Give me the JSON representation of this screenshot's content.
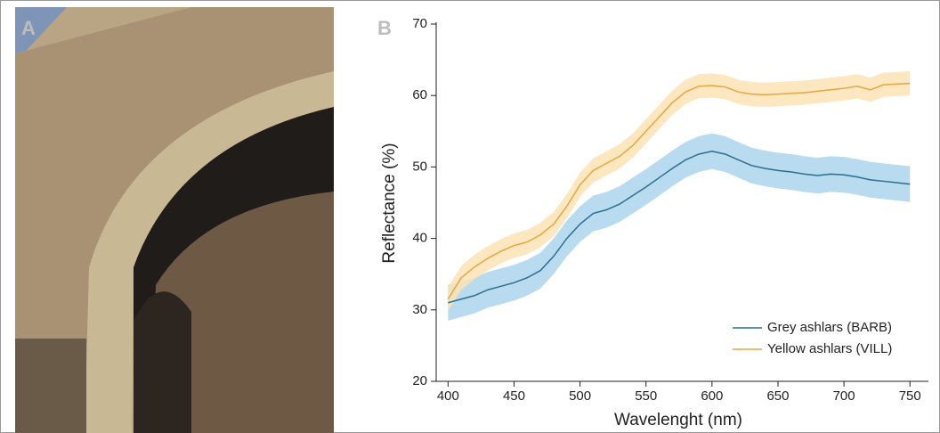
{
  "photo": {
    "label": "A"
  },
  "chart_data": {
    "type": "line",
    "label": "B",
    "x_label": "Wavelenght (nm)",
    "y_label": "Reflectance (%)",
    "x": [
      400,
      410,
      420,
      430,
      440,
      450,
      460,
      470,
      480,
      490,
      500,
      510,
      520,
      530,
      540,
      550,
      560,
      570,
      580,
      590,
      600,
      610,
      620,
      630,
      640,
      650,
      660,
      670,
      680,
      690,
      700,
      710,
      720,
      730,
      740,
      750
    ],
    "series": [
      {
        "name": "Grey ashlars (BARB)",
        "color": "#2b6f8e",
        "band_color": "#abd5ec",
        "values": [
          31,
          31.5,
          32,
          32.8,
          33.3,
          33.8,
          34.5,
          35.5,
          37.5,
          40,
          42,
          43.5,
          44,
          44.8,
          46,
          47.2,
          48.5,
          49.8,
          51,
          51.8,
          52.2,
          51.8,
          51,
          50.2,
          49.8,
          49.5,
          49.3,
          49,
          48.8,
          49,
          48.9,
          48.6,
          48.2,
          48,
          47.8,
          47.6
        ],
        "lower": [
          28.5,
          29,
          29.5,
          30.3,
          30.8,
          31.3,
          32,
          33,
          35,
          37.5,
          39.5,
          41,
          41.5,
          42.3,
          43.5,
          44.7,
          46,
          47.3,
          48.5,
          49.3,
          49.7,
          49.3,
          48.5,
          47.7,
          47.3,
          47,
          46.8,
          46.5,
          46.3,
          46.5,
          46.4,
          46.1,
          45.7,
          45.5,
          45.3,
          45.1
        ],
        "upper": [
          33.5,
          34,
          34.5,
          35.3,
          35.8,
          36.3,
          37,
          38,
          40,
          42.5,
          44.5,
          46,
          46.5,
          47.3,
          48.5,
          49.7,
          51,
          52.3,
          53.5,
          54.3,
          54.7,
          54.3,
          53.5,
          52.7,
          52.3,
          52,
          51.8,
          51.5,
          51.3,
          51.5,
          51.4,
          51.1,
          50.7,
          50.5,
          50.3,
          50.1
        ]
      },
      {
        "name": "Yellow ashlars (VILL)",
        "color": "#e6a73e",
        "band_color": "#fbe3b5",
        "values": [
          31.5,
          34.5,
          36,
          37.2,
          38.2,
          39,
          39.5,
          40.5,
          42,
          44.5,
          47.5,
          49.5,
          50.5,
          51.5,
          53,
          55,
          57,
          59,
          60.5,
          61.3,
          61.4,
          61.2,
          60.5,
          60.2,
          60.1,
          60.2,
          60.3,
          60.4,
          60.6,
          60.8,
          61,
          61.3,
          60.8,
          61.5,
          61.6,
          61.7
        ],
        "lower": [
          29.8,
          32.8,
          34.3,
          35.5,
          36.5,
          37.3,
          37.8,
          38.8,
          40.3,
          42.8,
          45.8,
          47.8,
          48.8,
          49.8,
          51.3,
          53.3,
          55.3,
          57.3,
          58.8,
          59.6,
          59.7,
          59.5,
          58.8,
          58.5,
          58.4,
          58.5,
          58.6,
          58.7,
          58.9,
          59.1,
          59.3,
          59.6,
          59.1,
          59.8,
          59.9,
          60
        ],
        "upper": [
          33.2,
          36.2,
          37.7,
          38.9,
          39.9,
          40.7,
          41.2,
          42.2,
          43.7,
          46.2,
          49.2,
          51.2,
          52.2,
          53.2,
          54.7,
          56.7,
          58.7,
          60.7,
          62.2,
          63,
          63.1,
          62.9,
          62.2,
          61.9,
          61.8,
          61.9,
          62,
          62.1,
          62.3,
          62.5,
          62.7,
          63,
          62.5,
          63.2,
          63.3,
          63.4
        ]
      }
    ],
    "xlim": [
      391,
      764
    ],
    "ylim": [
      20,
      70
    ],
    "xticks": [
      400,
      450,
      500,
      550,
      600,
      650,
      700,
      750
    ],
    "yticks": [
      20,
      30,
      40,
      50,
      60,
      70
    ],
    "legend": "lower right"
  }
}
